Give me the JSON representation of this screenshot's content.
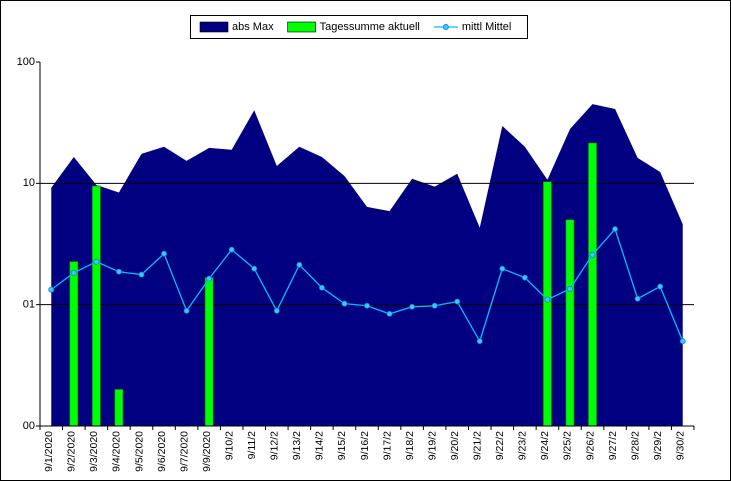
{
  "chart_data": {
    "type": "combo",
    "categories": [
      "9/1/2020",
      "9/2/2020",
      "9/3/2020",
      "9/4/2020",
      "9/5/2020",
      "9/6/2020",
      "9/7/2020",
      "9/9/2020",
      "9/10/2",
      "9/11/2",
      "9/12/2",
      "9/13/2",
      "9/14/2",
      "9/15/2",
      "9/16/2",
      "9/17/2",
      "9/18/2",
      "9/19/2",
      "9/20/2",
      "9/21/2",
      "9/22/2",
      "9/23/2",
      "9/24/2",
      "9/25/2",
      "9/26/2",
      "9/27/2",
      "9/28/2",
      "9/29/2",
      "9/30/2"
    ],
    "series": [
      {
        "name": "abs Max",
        "kind": "area",
        "color": "#000080",
        "values": [
          9.2,
          16.5,
          9.7,
          8.4,
          17.5,
          20,
          15.3,
          19.6,
          18.9,
          40,
          13.9,
          20,
          16.5,
          11.5,
          6.4,
          5.9,
          10.9,
          9.4,
          12,
          4.3,
          29.7,
          20,
          10.7,
          28,
          45,
          41,
          16.2,
          12.4,
          4.6
        ]
      },
      {
        "name": "Tagessumme aktuell",
        "kind": "bar",
        "color": "#00ff00",
        "values": [
          null,
          2.26,
          9.5,
          0.2,
          null,
          null,
          null,
          1.67,
          null,
          null,
          null,
          null,
          null,
          null,
          null,
          null,
          null,
          null,
          null,
          null,
          null,
          null,
          10.3,
          5,
          21.5,
          null,
          null,
          null,
          null
        ]
      },
      {
        "name": "mittl Mittel",
        "kind": "line",
        "color": "#00bfff",
        "values": [
          1.33,
          1.83,
          2.26,
          1.87,
          1.77,
          2.63,
          0.89,
          1.64,
          2.84,
          1.98,
          0.89,
          2.13,
          1.38,
          1.02,
          0.98,
          0.84,
          0.96,
          0.98,
          1.06,
          0.5,
          1.98,
          1.67,
          1.1,
          1.35,
          2.58,
          4.2,
          1.12,
          1.41,
          0.5
        ]
      }
    ],
    "ylim": [
      0.1,
      100
    ],
    "log_scale": true,
    "yticks": [
      {
        "value": 0.1,
        "label": "00"
      },
      {
        "value": 1,
        "label": "01"
      },
      10,
      100
    ],
    "grid": true,
    "legend": "top"
  }
}
